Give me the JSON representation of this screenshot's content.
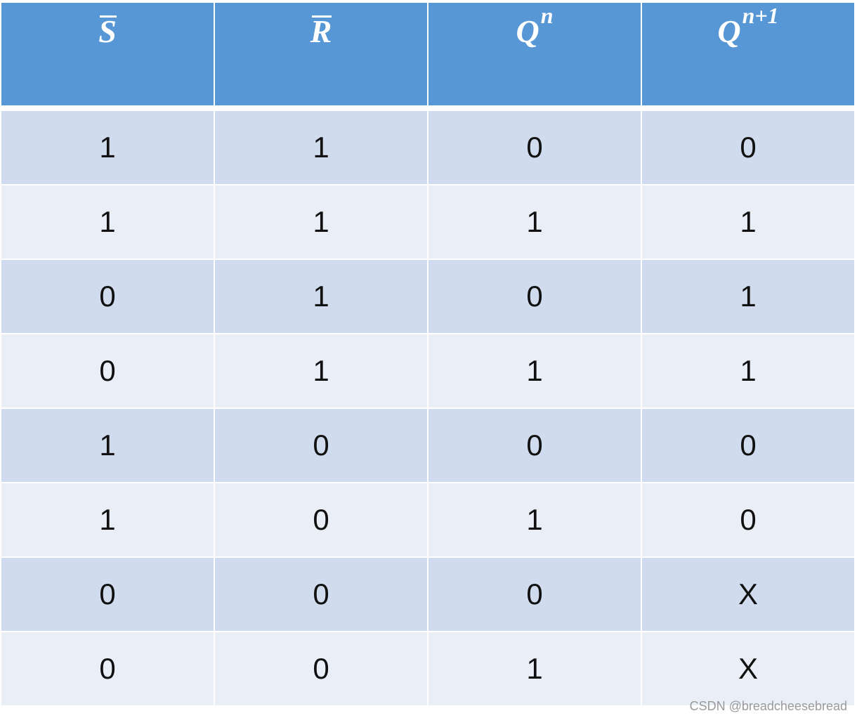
{
  "table": {
    "header": [
      {
        "base": "S",
        "overline": true
      },
      {
        "base": "R",
        "overline": true
      },
      {
        "base": "Q",
        "sup": "n"
      },
      {
        "base": "Q",
        "sup": "n+1"
      }
    ],
    "rows": [
      [
        "1",
        "1",
        "0",
        "0"
      ],
      [
        "1",
        "1",
        "1",
        "1"
      ],
      [
        "0",
        "1",
        "0",
        "1"
      ],
      [
        "0",
        "1",
        "1",
        "1"
      ],
      [
        "1",
        "0",
        "0",
        "0"
      ],
      [
        "1",
        "0",
        "1",
        "0"
      ],
      [
        "0",
        "0",
        "0",
        "X"
      ],
      [
        "0",
        "0",
        "1",
        "X"
      ]
    ]
  },
  "watermark": "CSDN @breadcheesebread"
}
